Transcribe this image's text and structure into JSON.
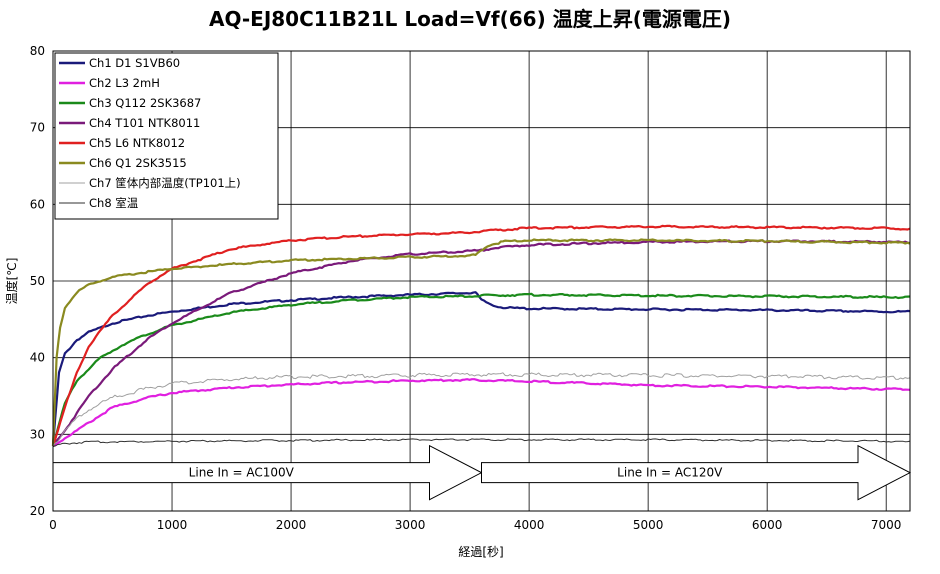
{
  "chart_data": {
    "type": "line",
    "title": "AQ-EJ80C11B21L Load=Vf(66)  温度上昇(電源電圧)",
    "xlabel": "経過[秒]",
    "ylabel": "温度[℃]",
    "xlim": [
      0,
      7200
    ],
    "ylim": [
      20,
      80
    ],
    "x_ticks": [
      0,
      1000,
      2000,
      3000,
      4000,
      5000,
      6000,
      7000
    ],
    "y_ticks": [
      20,
      30,
      40,
      50,
      60,
      70,
      80
    ],
    "grid": true,
    "legend_position": "top-left",
    "annotations": [
      {
        "text": "Line In = AC100V",
        "x_start": 0,
        "x_end": 3600,
        "y": 25
      },
      {
        "text": "Line In = AC120V",
        "x_start": 3600,
        "x_end": 7200,
        "y": 25
      }
    ],
    "series": [
      {
        "name": "Ch1  D1  S1VB60",
        "color": "#1a1a7a",
        "x": [
          0,
          50,
          100,
          200,
          300,
          500,
          800,
          1000,
          1500,
          2000,
          2500,
          3000,
          3400,
          3550,
          3600,
          3700,
          3800,
          4000,
          5000,
          6000,
          7000,
          7200
        ],
        "y": [
          28.5,
          38,
          40.5,
          42.3,
          43.3,
          44.5,
          45.5,
          46,
          47,
          47.5,
          47.9,
          48.2,
          48.4,
          48.5,
          47.5,
          46.8,
          46.5,
          46.4,
          46.3,
          46.2,
          46,
          46
        ]
      },
      {
        "name": "Ch2  L3  2mH",
        "color": "#e020e0",
        "x": [
          0,
          100,
          300,
          500,
          800,
          1000,
          1500,
          2000,
          2500,
          3000,
          3500,
          4000,
          5000,
          6000,
          7000,
          7200
        ],
        "y": [
          28.5,
          29.5,
          31.5,
          33.5,
          34.8,
          35.4,
          36.1,
          36.5,
          36.8,
          37,
          37.1,
          36.9,
          36.4,
          36.2,
          35.9,
          35.9
        ]
      },
      {
        "name": "Ch3  Q112  2SK3687",
        "color": "#1a8a1a",
        "x": [
          0,
          100,
          200,
          400,
          600,
          800,
          1000,
          1500,
          2000,
          2500,
          3000,
          3500,
          3600,
          4000,
          5000,
          6000,
          7000,
          7200
        ],
        "y": [
          28.5,
          34,
          37,
          40,
          41.8,
          43.1,
          44.2,
          45.9,
          46.9,
          47.5,
          47.9,
          48,
          48.1,
          48.2,
          48.1,
          48,
          47.9,
          47.9
        ]
      },
      {
        "name": "Ch4  T101  NTK8011",
        "color": "#7a1a7a",
        "x": [
          0,
          100,
          300,
          500,
          800,
          1000,
          1500,
          2000,
          2500,
          3000,
          3500,
          3600,
          3700,
          4000,
          5000,
          6000,
          7000,
          7200
        ],
        "y": [
          28.5,
          30.5,
          35,
          38.5,
          42.5,
          44.5,
          48.5,
          51,
          52.6,
          53.5,
          53.9,
          54,
          54.3,
          54.7,
          55.1,
          55.2,
          55.1,
          55
        ]
      },
      {
        "name": "Ch5  L6  NTK8012",
        "color": "#e02020",
        "x": [
          0,
          100,
          200,
          300,
          500,
          800,
          1000,
          1500,
          2000,
          2500,
          3000,
          3500,
          3600,
          4000,
          5000,
          6000,
          7000,
          7200
        ],
        "y": [
          28.5,
          33.5,
          38,
          41.5,
          45.5,
          49.7,
          51.6,
          54.2,
          55.3,
          55.8,
          56.1,
          56.3,
          56.5,
          56.9,
          57.1,
          57,
          56.9,
          56.8
        ]
      },
      {
        "name": "Ch6  Q1  2SK3515",
        "color": "#8a8a20",
        "x": [
          0,
          30,
          60,
          100,
          200,
          300,
          500,
          800,
          1000,
          1500,
          2000,
          2500,
          3000,
          3500,
          3550,
          3650,
          3800,
          4000,
          5000,
          6000,
          7000,
          7200
        ],
        "y": [
          28.5,
          40,
          44,
          46.5,
          48.5,
          49.5,
          50.5,
          51.2,
          51.6,
          52.2,
          52.7,
          52.9,
          53.1,
          53.3,
          53.4,
          54.6,
          55.2,
          55.3,
          55.3,
          55.2,
          55,
          55
        ]
      },
      {
        "name": "Ch7  筐体内部温度(TP101上)",
        "color": "#a0a0a0",
        "x": [
          0,
          100,
          200,
          300,
          500,
          800,
          1000,
          1500,
          2000,
          2500,
          3000,
          3500,
          4000,
          5000,
          6000,
          7000,
          7200
        ],
        "y": [
          28.5,
          30.5,
          32,
          33.2,
          34.8,
          36,
          36.6,
          37.2,
          37.5,
          37.6,
          37.7,
          37.8,
          37.8,
          37.7,
          37.6,
          37.4,
          37.4
        ]
      },
      {
        "name": "Ch8  室温",
        "color": "#303030",
        "x": [
          0,
          100,
          300,
          1000,
          2000,
          3000,
          4000,
          5000,
          6000,
          7000,
          7200
        ],
        "y": [
          28.4,
          28.8,
          29,
          29.1,
          29.2,
          29.3,
          29.3,
          29.3,
          29.2,
          29.1,
          29
        ]
      }
    ]
  }
}
